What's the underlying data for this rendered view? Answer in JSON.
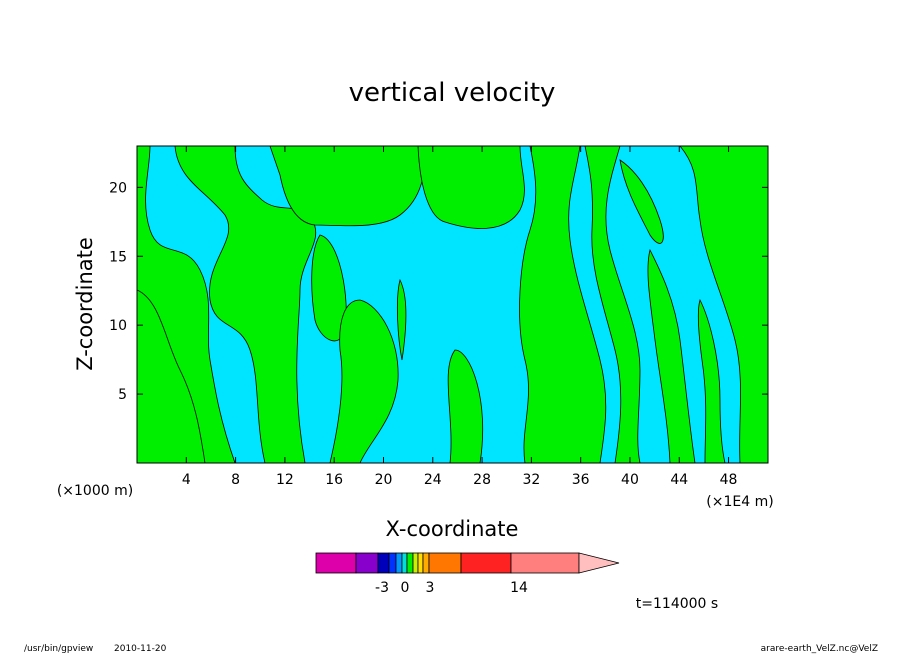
{
  "chart_data": {
    "type": "contour",
    "title": "vertical velocity",
    "xlabel": "X-coordinate",
    "ylabel": "Z-coordinate",
    "x_scale_note": "(×1E4 m)",
    "y_scale_note": "(×1000 m)",
    "xlim": [
      0,
      51.2
    ],
    "ylim": [
      0,
      23
    ],
    "x_ticks": [
      4,
      8,
      12,
      16,
      20,
      24,
      28,
      32,
      36,
      40,
      44,
      48
    ],
    "y_ticks": [
      5,
      10,
      15,
      20
    ],
    "fill_colors": {
      "negative_small": "#00e5ff",
      "positive_small": "#00ee00"
    },
    "colorbar": {
      "segments": [
        "#dd00aa",
        "#8800cc",
        "#0000bb",
        "#0033ff",
        "#0099ff",
        "#00dddd",
        "#00ee00",
        "#ccee00",
        "#ffdd00",
        "#ffaa00",
        "#ff7700",
        "#ff2222",
        "#ff7f7f",
        "#ffbfbf"
      ],
      "labels": [
        {
          "text": "-3",
          "value": -3
        },
        {
          "text": "0",
          "value": 0
        },
        {
          "text": "3",
          "value": 3
        },
        {
          "text": "14",
          "value": 14
        }
      ]
    },
    "time_label": "t=114000 s"
  },
  "footer": {
    "program": "/usr/bin/gpview",
    "date": "2010-11-20",
    "source": "arare-earth_VelZ.nc@VelZ"
  }
}
